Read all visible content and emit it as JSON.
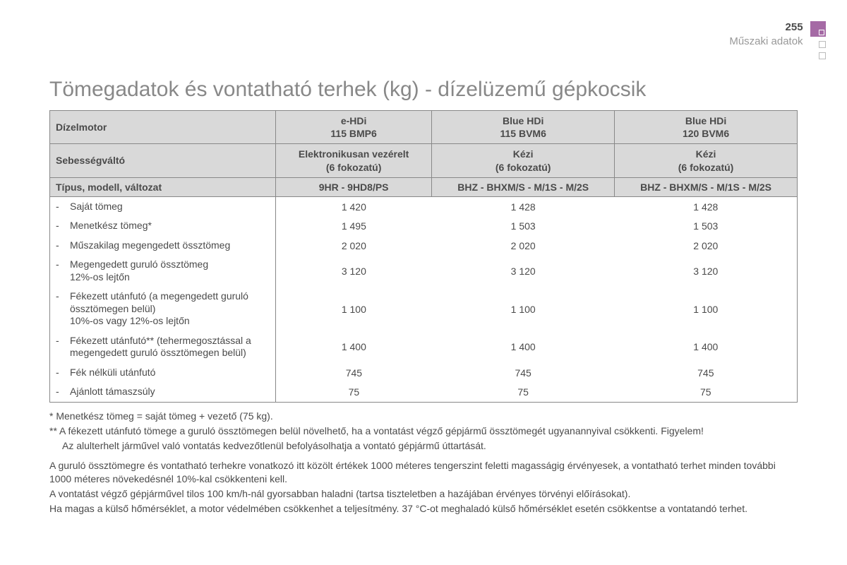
{
  "header": {
    "page_number": "255",
    "section": "Műszaki adatok",
    "accent_color": "#a56aa5"
  },
  "title": "Tömegadatok és vontatható terhek (kg) - dízelüzemű gépkocsik",
  "table": {
    "header_rows": [
      {
        "label": "Dízelmotor",
        "cols": [
          "e-HDi\n115 BMP6",
          "Blue HDi\n115 BVM6",
          "Blue HDi\n120 BVM6"
        ]
      },
      {
        "label": "Sebességváltó",
        "cols": [
          "Elektronikusan vezérelt\n(6 fokozatú)",
          "Kézi\n(6 fokozatú)",
          "Kézi\n(6 fokozatú)"
        ]
      },
      {
        "label": "Típus, modell, változat",
        "cols": [
          "9HR - 9HD8/PS",
          "BHZ - BHXM/S - M/1S - M/2S",
          "BHZ - BHXM/S - M/1S - M/2S"
        ]
      }
    ],
    "data_rows": [
      {
        "label": "Saját tömeg",
        "vals": [
          "1 420",
          "1 428",
          "1 428"
        ]
      },
      {
        "label": "Menetkész tömeg*",
        "vals": [
          "1 495",
          "1 503",
          "1 503"
        ]
      },
      {
        "label": "Műszakilag megengedett össztömeg",
        "vals": [
          "2 020",
          "2 020",
          "2 020"
        ]
      },
      {
        "label": "Megengedett guruló össztömeg\n12%-os lejtőn",
        "vals": [
          "3 120",
          "3 120",
          "3 120"
        ]
      },
      {
        "label": "Fékezett utánfutó (a megengedett guruló össztömegen belül)\n10%-os vagy 12%-os lejtőn",
        "vals": [
          "1 100",
          "1 100",
          "1 100"
        ]
      },
      {
        "label": "Fékezett utánfutó** (tehermegosztással a megengedett guruló össztömegen belül)",
        "vals": [
          "1 400",
          "1 400",
          "1 400"
        ]
      },
      {
        "label": "Fék nélküli utánfutó",
        "vals": [
          "745",
          "745",
          "745"
        ]
      },
      {
        "label": "Ajánlott támaszsúly",
        "vals": [
          "75",
          "75",
          "75"
        ]
      }
    ],
    "header_bg": "#d9d9d9",
    "border_color": "#888888"
  },
  "notes": {
    "n1": "* Menetkész tömeg = saját tömeg + vezető (75 kg).",
    "n2a": "** A fékezett utánfutó tömege a guruló össztömegen belül növelhető, ha a vontatást végző gépjármű össztömegét ugyanannyival csökkenti. Figyelem!",
    "n2b": "Az alulterhelt járművel való vontatás kedvezőtlenül befolyásolhatja a vontató gépjármű úttartását.",
    "p1": "A guruló össztömegre és vontatható terhekre vonatkozó itt közölt értékek 1000 méteres tengerszint feletti magasságig érvényesek, a vontatható terhet minden további 1000 méteres növekedésnél 10%-kal csökkenteni kell.",
    "p2": "A vontatást végző gépjárművel tilos 100 km/h-nál gyorsabban haladni (tartsa tiszteletben a hazájában érvényes törvényi előírásokat).",
    "p3": "Ha magas a külső hőmérséklet, a motor védelmében csökkenhet a teljesítmény. 37 °C-ot meghaladó külső hőmérséklet esetén csökkentse a vontatandó terhet."
  }
}
